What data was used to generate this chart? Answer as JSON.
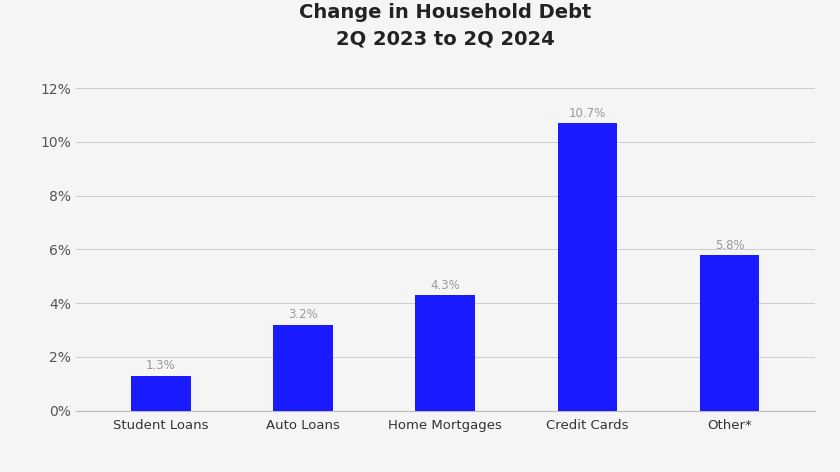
{
  "title_line1": "Change in Household Debt",
  "title_line2": "2Q 2023 to 2Q 2024",
  "categories": [
    "Student Loans",
    "Auto Loans",
    "Home Mortgages",
    "Credit Cards",
    "Other*"
  ],
  "values": [
    1.3,
    3.2,
    4.3,
    10.7,
    5.8
  ],
  "bar_color": "#1a1aff",
  "label_color": "#999999",
  "ytick_labels": [
    "0%",
    "2%",
    "4%",
    "6%",
    "8%",
    "10%",
    "12%"
  ],
  "ytick_values": [
    0,
    2,
    4,
    6,
    8,
    10,
    12
  ],
  "ylim": [
    0,
    13.0
  ],
  "background_color": "#f5f5f5",
  "title_fontsize": 14,
  "bar_label_fontsize": 8.5,
  "tick_label_fontsize": 10,
  "xtick_label_fontsize": 9.5,
  "title_fontweight": "bold",
  "title_color": "#222222",
  "grid_color": "#cccccc",
  "bar_width": 0.42
}
